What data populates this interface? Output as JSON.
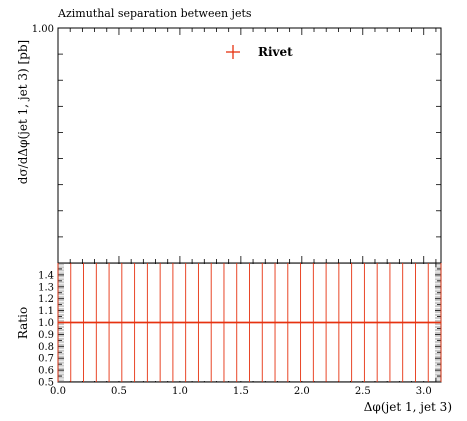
{
  "chart_data": [
    {
      "type": "line",
      "title": "Azimuthal separation between jets",
      "ylabel": "dσ/dΔφ(jet 1, jet 3) [pb]",
      "yticks": [
        "1.00"
      ],
      "series": [
        {
          "name": "Rivet",
          "color": "#e63210",
          "marker": "cross",
          "x": [],
          "y": []
        }
      ],
      "legend_position": "top-center"
    },
    {
      "type": "line",
      "ylabel": "Ratio",
      "xlabel": "Δφ(jet 1, jet 3)",
      "xlim": [
        0,
        3.1416
      ],
      "ylim": [
        0.5,
        1.5
      ],
      "xticks": [
        0.0,
        0.5,
        1.0,
        1.5,
        2.0,
        2.5,
        3.0
      ],
      "xtick_labels": [
        "0.0",
        "0.5",
        "1.0",
        "1.5",
        "2.0",
        "2.5",
        "3.0"
      ],
      "yticks": [
        0.5,
        0.6,
        0.7,
        0.8,
        0.9,
        1.0,
        1.1,
        1.2,
        1.3,
        1.4
      ],
      "ytick_labels": [
        "0.5",
        "0.6",
        "0.7",
        "0.8",
        "0.9",
        "1.0",
        "1.1",
        "1.2",
        "1.3",
        "1.4"
      ],
      "reference_line": 1.0,
      "bin_edges": [
        0.0,
        0.1047,
        0.2094,
        0.3142,
        0.4189,
        0.5236,
        0.6283,
        0.733,
        0.8378,
        0.9425,
        1.0472,
        1.1519,
        1.2566,
        1.3614,
        1.4661,
        1.5708,
        1.6755,
        1.7802,
        1.885,
        1.9897,
        2.0944,
        2.1991,
        2.3038,
        2.4086,
        2.5133,
        2.618,
        2.7227,
        2.8274,
        2.9322,
        3.0369,
        3.1416
      ],
      "series": [
        {
          "name": "Rivet",
          "color": "#e63210",
          "values": [
            1,
            1,
            1,
            1,
            1,
            1,
            1,
            1,
            1,
            1,
            1,
            1,
            1,
            1,
            1,
            1,
            1,
            1,
            1,
            1,
            1,
            1,
            1,
            1,
            1,
            1,
            1,
            1,
            1,
            1
          ]
        }
      ]
    }
  ]
}
